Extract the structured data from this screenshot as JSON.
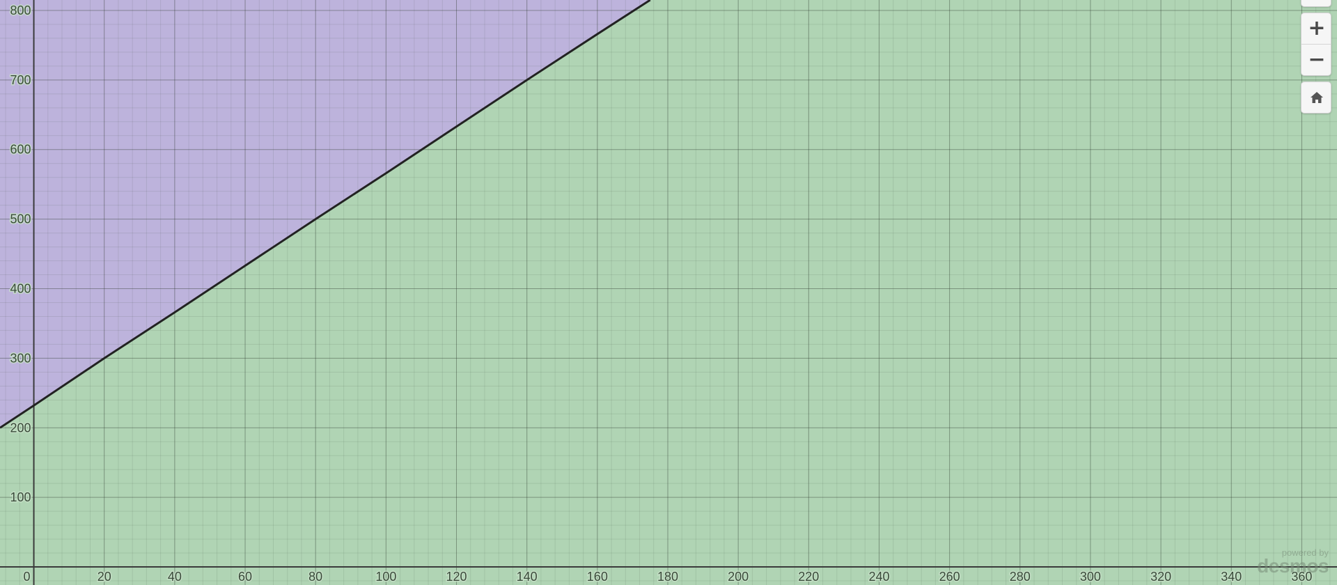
{
  "chart_data": {
    "type": "area",
    "title": "",
    "xlabel": "",
    "ylabel": "",
    "xlim": [
      -9.6,
      370
    ],
    "ylim": [
      -26,
      815
    ],
    "x_ticks": [
      0,
      20,
      40,
      60,
      80,
      100,
      120,
      140,
      160,
      180,
      200,
      220,
      240,
      260,
      280,
      300,
      320,
      340,
      360
    ],
    "y_ticks": [
      100,
      200,
      300,
      400,
      500,
      600,
      700,
      800
    ],
    "x_tick_labels": [
      "0",
      "20",
      "40",
      "60",
      "80",
      "100",
      "120",
      "140",
      "160",
      "180",
      "200",
      "220",
      "240",
      "260",
      "280",
      "300",
      "320",
      "340",
      "360"
    ],
    "y_tick_labels": [
      "100",
      "200",
      "300",
      "400",
      "500",
      "600",
      "700",
      "800"
    ],
    "grid": true,
    "major_grid_step": {
      "x": 20,
      "y": 100
    },
    "minor_grid_step": {
      "x": 4,
      "y": 20
    },
    "series": [
      {
        "type": "line",
        "x": [
          -9.6,
          0,
          20,
          40,
          60,
          80,
          100,
          120,
          140,
          160,
          175
        ],
        "y": [
          200,
          232,
          300,
          366,
          433,
          500,
          566,
          633,
          700,
          766,
          815
        ],
        "color": "#222222"
      }
    ],
    "regions": [
      {
        "fill": "#bdb3dc",
        "side": "above"
      },
      {
        "fill": "#b0d4b4",
        "side": "below"
      }
    ]
  },
  "controls": {
    "zoom_in_label": "+",
    "zoom_out_label": "−",
    "home_icon": "home-icon"
  },
  "watermark": {
    "small": "powered by",
    "big": "desmos"
  }
}
